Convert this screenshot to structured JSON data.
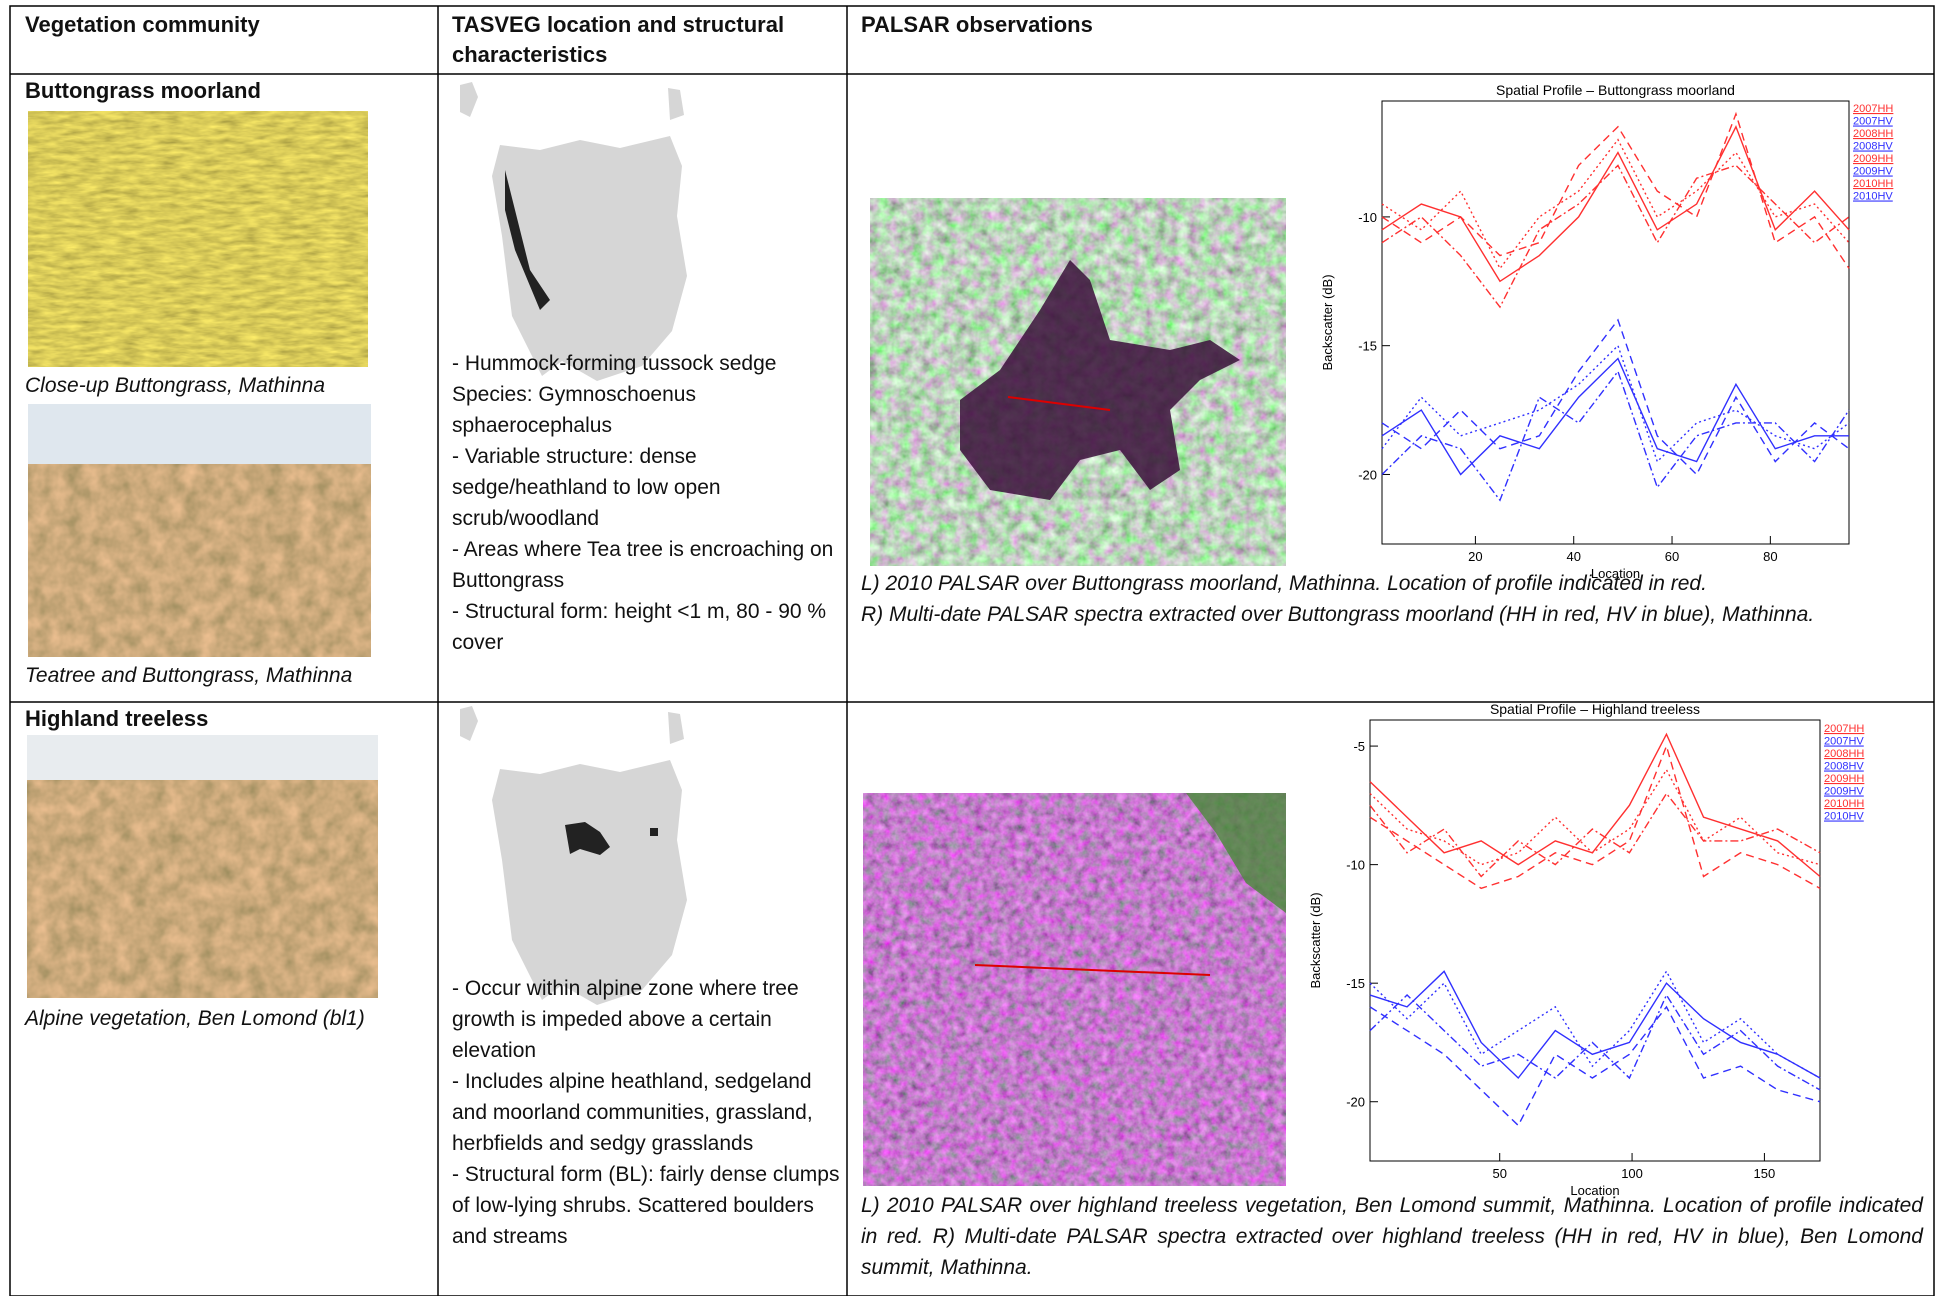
{
  "table": {
    "headers": [
      "Vegetation community",
      "TASVEG location and structural characteristics",
      "PALSAR observations"
    ],
    "rows": [
      {
        "community": "Buttongrass moorland",
        "photo_captions": [
          "Close-up Buttongrass, Mathinna",
          "Teatree and Buttongrass, Mathinna"
        ],
        "tasveg": [
          "- Hummock-forming tussock sedge",
          "Species: Gymnoschoenus sphaerocephalus",
          "- Variable structure: dense sedge/heathland to low open scrub/woodland",
          "- Areas where Tea tree is encroaching on Buttongrass",
          "- Structural form: height <1 m, 80 - 90 % cover"
        ],
        "palsar_caption": [
          "L) 2010 PALSAR over Buttongrass moorland, Mathinna. Location of profile indicated in red.",
          "R) Multi-date PALSAR spectra extracted over Buttongrass moorland (HH in red, HV in blue), Mathinna."
        ]
      },
      {
        "community": "Highland treeless",
        "photo_captions": [
          "Alpine vegetation, Ben Lomond (bl1)"
        ],
        "tasveg": [
          "- Occur within alpine zone where tree growth is impeded above a certain elevation",
          "- Includes alpine heathland, sedgeland and moorland communities, grassland, herbfields and sedgy grasslands",
          "- Structural form (BL): fairly dense clumps of low-lying shrubs. Scattered boulders and streams"
        ],
        "palsar_caption": [
          "L) 2010 PALSAR over highland treeless vegetation, Ben Lomond summit, Mathinna. Location of profile indicated in red. R) Multi-date PALSAR spectra extracted over highland treeless (HH in red, HV in blue), Ben Lomond summit, Mathinna."
        ]
      }
    ]
  },
  "chart_data": [
    {
      "type": "line",
      "title": "Spatial Profile – Buttongrass moorland",
      "x_label": "Location",
      "y_label": "Backscatter (dB)",
      "x": [
        1,
        9,
        17,
        25,
        33,
        41,
        49,
        57,
        65,
        73,
        81,
        89,
        96
      ],
      "xlim": [
        1,
        96
      ],
      "ylim": [
        -22.7,
        -5.5
      ],
      "xticks": [
        20,
        40,
        60,
        80
      ],
      "yticks": [
        -10,
        -15,
        -20
      ],
      "series": [
        {
          "name": "2007HH",
          "color": "#ff3030",
          "dash": "dot",
          "values": [
            -9.5,
            -10.5,
            -9,
            -12,
            -10,
            -9,
            -7,
            -10,
            -9,
            -7.5,
            -10,
            -9.5,
            -11
          ]
        },
        {
          "name": "2007HV",
          "color": "#3030ff",
          "dash": "dot",
          "values": [
            -19,
            -17,
            -18.5,
            -18,
            -17.5,
            -16.5,
            -15,
            -19.5,
            -18,
            -17.5,
            -18.5,
            -19,
            -18
          ]
        },
        {
          "name": "2008HH",
          "color": "#ff3030",
          "dash": "dash",
          "values": [
            -10,
            -11,
            -10,
            -11.5,
            -11,
            -8,
            -6.5,
            -9,
            -10,
            -6,
            -11,
            -10,
            -12
          ]
        },
        {
          "name": "2008HV",
          "color": "#3030ff",
          "dash": "dash",
          "values": [
            -18,
            -19,
            -17.5,
            -19,
            -18.5,
            -16,
            -14,
            -18.5,
            -20,
            -17,
            -19.5,
            -18,
            -19
          ]
        },
        {
          "name": "2009HH",
          "color": "#ff3030",
          "dash": "dashdot",
          "values": [
            -11,
            -10,
            -11.5,
            -13.5,
            -10.5,
            -9.5,
            -8,
            -11,
            -8.5,
            -8,
            -9.5,
            -11,
            -10
          ]
        },
        {
          "name": "2009HV",
          "color": "#3030ff",
          "dash": "dashdot",
          "values": [
            -20,
            -18.5,
            -19,
            -21,
            -17,
            -18,
            -16,
            -20.5,
            -18.5,
            -18,
            -18,
            -19.5,
            -17.5
          ]
        },
        {
          "name": "2010HH",
          "color": "#ff3030",
          "dash": "solid",
          "values": [
            -10.5,
            -9.5,
            -10,
            -12.5,
            -11.5,
            -10,
            -7.5,
            -10.5,
            -9.5,
            -6.5,
            -10.5,
            -9,
            -10.5
          ]
        },
        {
          "name": "2010HV",
          "color": "#3030ff",
          "dash": "solid",
          "values": [
            -18.5,
            -17.5,
            -20,
            -18.5,
            -19,
            -17,
            -15.5,
            -19,
            -19.5,
            -16.5,
            -19,
            -18.5,
            -18.5
          ]
        }
      ]
    },
    {
      "type": "line",
      "title": "Spatial Profile – Highland treeless",
      "x_label": "Location",
      "y_label": "Backscatter (dB)",
      "x": [
        1,
        15,
        29,
        43,
        57,
        71,
        85,
        99,
        113,
        127,
        141,
        155,
        171
      ],
      "xlim": [
        1,
        171
      ],
      "ylim": [
        -22.5,
        -3.9
      ],
      "xticks": [
        50,
        100,
        150
      ],
      "yticks": [
        -5,
        -10,
        -15,
        -20
      ],
      "series": [
        {
          "name": "2007HH",
          "color": "#ff3030",
          "dash": "dot",
          "values": [
            -7,
            -8.5,
            -9,
            -10,
            -9.5,
            -8,
            -9.5,
            -8.5,
            -6,
            -9,
            -8,
            -9.5,
            -10
          ]
        },
        {
          "name": "2007HV",
          "color": "#3030ff",
          "dash": "dot",
          "values": [
            -15,
            -16.5,
            -15,
            -18,
            -17,
            -16,
            -18.5,
            -17,
            -14.5,
            -17.5,
            -16.5,
            -18,
            -19
          ]
        },
        {
          "name": "2008HH",
          "color": "#ff3030",
          "dash": "dash",
          "values": [
            -8,
            -9,
            -10,
            -11,
            -10.5,
            -9.5,
            -10,
            -9,
            -5,
            -10.5,
            -9.5,
            -10,
            -11
          ]
        },
        {
          "name": "2008HV",
          "color": "#3030ff",
          "dash": "dash",
          "values": [
            -16,
            -17,
            -18,
            -19.5,
            -21,
            -18,
            -19,
            -18,
            -16,
            -19,
            -18.5,
            -19.5,
            -20
          ]
        },
        {
          "name": "2009HH",
          "color": "#ff3030",
          "dash": "dashdot",
          "values": [
            -7.5,
            -9.5,
            -8.5,
            -10.5,
            -9,
            -10,
            -8.5,
            -9.5,
            -7,
            -9,
            -9,
            -8.5,
            -9.5
          ]
        },
        {
          "name": "2009HV",
          "color": "#3030ff",
          "dash": "dashdot",
          "values": [
            -17,
            -15.5,
            -17,
            -18.5,
            -18,
            -19,
            -17.5,
            -19,
            -15.5,
            -18,
            -17,
            -18.5,
            -19.5
          ]
        },
        {
          "name": "2010HH",
          "color": "#ff3030",
          "dash": "solid",
          "values": [
            -6.5,
            -8,
            -9.5,
            -9,
            -10,
            -9,
            -9.5,
            -7.5,
            -4.5,
            -8,
            -8.5,
            -9,
            -10.5
          ]
        },
        {
          "name": "2010HV",
          "color": "#3030ff",
          "dash": "solid",
          "values": [
            -15.5,
            -16,
            -14.5,
            -17.5,
            -19,
            -17,
            -18,
            -17.5,
            -15,
            -16.5,
            -17.5,
            -18,
            -19
          ]
        }
      ]
    }
  ]
}
